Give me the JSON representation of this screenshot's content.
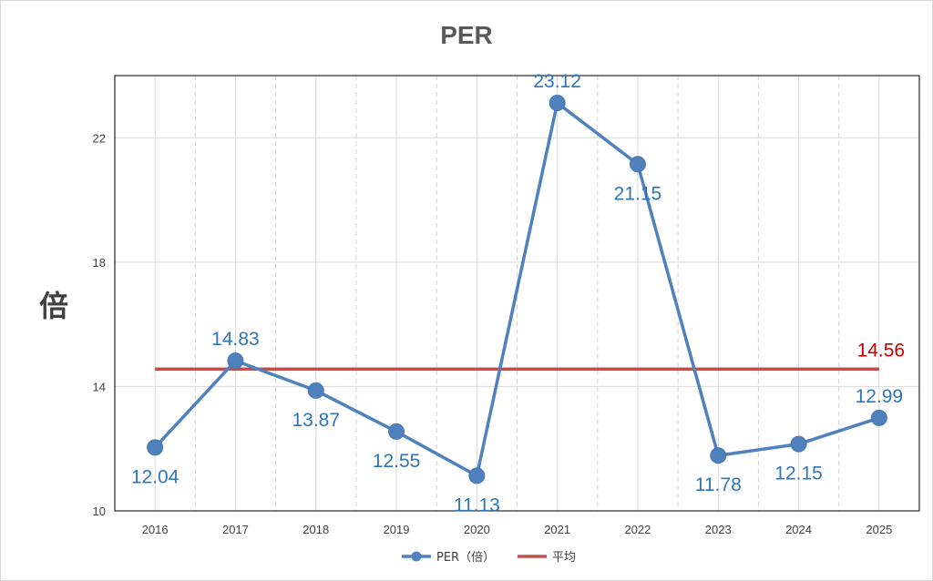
{
  "chart_data": {
    "type": "line",
    "title": "PER",
    "ylabel": "倍",
    "xlabel": "",
    "categories": [
      "2016",
      "2017",
      "2018",
      "2019",
      "2020",
      "2021",
      "2022",
      "2023",
      "2024",
      "2025"
    ],
    "series": [
      {
        "name": "PER（倍）",
        "values": [
          12.04,
          14.83,
          13.87,
          12.55,
          11.13,
          23.12,
          21.15,
          11.78,
          12.15,
          12.99
        ],
        "data_labels": [
          "12.04",
          "14.83",
          "13.87",
          "12.55",
          "11.13",
          "23.12",
          "21.15",
          "11.78",
          "12.15",
          "12.99"
        ],
        "color": "#4f81bd"
      },
      {
        "name": "平均",
        "values": [
          14.56,
          14.56,
          14.56,
          14.56,
          14.56,
          14.56,
          14.56,
          14.56,
          14.56,
          14.56
        ],
        "end_label": "14.56",
        "color": "#c0504d"
      }
    ],
    "ylim": [
      10,
      24
    ],
    "yticks": [
      10,
      14,
      18,
      22
    ],
    "ytick_labels": [
      "10",
      "14",
      "18",
      "22"
    ],
    "grid": true,
    "legend_position": "bottom"
  }
}
